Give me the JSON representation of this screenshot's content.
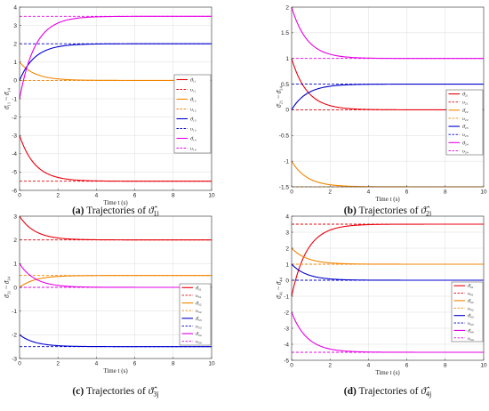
{
  "chart_data": [
    {
      "type": "line",
      "panel": "a",
      "caption_label": "(a)",
      "caption_text": "Trajectories of ",
      "caption_sym": "ϑ̂",
      "caption_sub": "1j",
      "xlabel": "Time t (s)",
      "ylabel": "ϑ̂₁₁ ~ ϑ̂₁₄",
      "xlim": [
        0,
        10
      ],
      "ylim": [
        -6,
        4
      ],
      "xticks": [
        0,
        2,
        4,
        6,
        8,
        10
      ],
      "yticks": [
        -6,
        -5,
        -4,
        -3,
        -2,
        -1,
        0,
        1,
        2,
        3,
        4
      ],
      "tau": 0.8,
      "grid": true,
      "legend_position": "center-right",
      "series": [
        {
          "name": "ϑ̂₁₁",
          "color": "#e8000b",
          "dashed": false,
          "start": -3.0,
          "final": -5.5
        },
        {
          "name": "υ₁₁",
          "color": "#e8000b",
          "dashed": true,
          "value": -5.5
        },
        {
          "name": "ϑ̂₁₂",
          "color": "#f28500",
          "dashed": false,
          "start": 1.0,
          "final": 0.0
        },
        {
          "name": "υ₁₂",
          "color": "#f28500",
          "dashed": true,
          "value": 0.0
        },
        {
          "name": "ϑ̂₁₃",
          "color": "#0000cd",
          "dashed": false,
          "start": 0.0,
          "final": 2.0
        },
        {
          "name": "υ₁₃",
          "color": "#0000cd",
          "dashed": true,
          "value": 2.0
        },
        {
          "name": "ϑ̂₁₄",
          "color": "#e600e6",
          "dashed": false,
          "start": -1.0,
          "final": 3.5
        },
        {
          "name": "υ₁₄",
          "color": "#e600e6",
          "dashed": true,
          "value": 3.5
        }
      ]
    },
    {
      "type": "line",
      "panel": "b",
      "caption_label": "(b)",
      "caption_text": "Trajectories of ",
      "caption_sym": "ϑ̂",
      "caption_sub": "2j",
      "xlabel": "Time t (s)",
      "ylabel": "ϑ̂₂₁ ~ ϑ̂₂₄",
      "xlim": [
        0,
        10
      ],
      "ylim": [
        -1.5,
        2
      ],
      "xticks": [
        0,
        2,
        4,
        6,
        8,
        10
      ],
      "yticks": [
        -1.5,
        -1,
        -0.5,
        0,
        0.5,
        1,
        1.5,
        2
      ],
      "tau": 0.8,
      "grid": true,
      "legend_position": "center-right",
      "series": [
        {
          "name": "ϑ̂₂₁",
          "color": "#e8000b",
          "dashed": false,
          "start": 1.0,
          "final": 0.0
        },
        {
          "name": "υ₂₁",
          "color": "#e8000b",
          "dashed": true,
          "value": 0.0
        },
        {
          "name": "ϑ̂₂₂",
          "color": "#f28500",
          "dashed": false,
          "start": -1.0,
          "final": -1.5
        },
        {
          "name": "υ₂₂",
          "color": "#f28500",
          "dashed": true,
          "value": -1.5
        },
        {
          "name": "ϑ̂₂₃",
          "color": "#0000cd",
          "dashed": false,
          "start": 0.0,
          "final": 0.5
        },
        {
          "name": "υ₂₃",
          "color": "#0000cd",
          "dashed": true,
          "value": 0.5
        },
        {
          "name": "ϑ̂₂₄",
          "color": "#e600e6",
          "dashed": false,
          "start": 2.0,
          "final": 1.0
        },
        {
          "name": "υ₂₄",
          "color": "#e600e6",
          "dashed": true,
          "value": 1.0
        }
      ]
    },
    {
      "type": "line",
      "panel": "c",
      "caption_label": "(c)",
      "caption_text": "Trajectories of ",
      "caption_sym": "ϑ̂",
      "caption_sub": "3j",
      "xlabel": "Time t (s)",
      "ylabel": "ϑ̂₃₁ ~ ϑ̂₃₄",
      "xlim": [
        0,
        10
      ],
      "ylim": [
        -3,
        3
      ],
      "xticks": [
        0,
        2,
        4,
        6,
        8,
        10
      ],
      "yticks": [
        -3,
        -2,
        -1,
        0,
        1,
        2,
        3
      ],
      "tau": 0.8,
      "grid": true,
      "legend_position": "center-right",
      "series": [
        {
          "name": "ϑ̂₃₁",
          "color": "#e8000b",
          "dashed": false,
          "start": 3.0,
          "final": 2.0
        },
        {
          "name": "υ₃₁",
          "color": "#e8000b",
          "dashed": true,
          "value": 2.0
        },
        {
          "name": "ϑ̂₃₂",
          "color": "#f28500",
          "dashed": false,
          "start": 0.0,
          "final": 0.5
        },
        {
          "name": "υ₃₂",
          "color": "#f28500",
          "dashed": true,
          "value": 0.5
        },
        {
          "name": "ϑ̂₃₃",
          "color": "#0000cd",
          "dashed": false,
          "start": -2.0,
          "final": -2.5
        },
        {
          "name": "υ₃₃",
          "color": "#0000cd",
          "dashed": true,
          "value": -2.5
        },
        {
          "name": "ϑ̂₃₄",
          "color": "#e600e6",
          "dashed": false,
          "start": 1.0,
          "final": 0.0
        },
        {
          "name": "υ₃₄",
          "color": "#e600e6",
          "dashed": true,
          "value": 0.0
        }
      ]
    },
    {
      "type": "line",
      "panel": "d",
      "caption_label": "(d)",
      "caption_text": "Trajectories of ",
      "caption_sym": "ϑ̂",
      "caption_sub": "4j",
      "xlabel": "Time t (s)",
      "ylabel": "ϑ̂₄₁ ~ ϑ̂₄₄",
      "xlim": [
        0,
        10
      ],
      "ylim": [
        -5,
        4
      ],
      "xticks": [
        0,
        2,
        4,
        6,
        8,
        10
      ],
      "yticks": [
        -5,
        -4,
        -3,
        -2,
        -1,
        0,
        1,
        2,
        3,
        4
      ],
      "tau": 0.8,
      "grid": true,
      "legend_position": "center-right",
      "series": [
        {
          "name": "ϑ̂₄₁",
          "color": "#e8000b",
          "dashed": false,
          "start": -1.0,
          "final": 3.5
        },
        {
          "name": "υ₄₁",
          "color": "#e8000b",
          "dashed": true,
          "value": 3.5
        },
        {
          "name": "ϑ̂₄₂",
          "color": "#f28500",
          "dashed": false,
          "start": 2.0,
          "final": 1.0
        },
        {
          "name": "υ₄₂",
          "color": "#f28500",
          "dashed": true,
          "value": 1.0
        },
        {
          "name": "ϑ̂₄₃",
          "color": "#0000cd",
          "dashed": false,
          "start": 1.0,
          "final": 0.0
        },
        {
          "name": "υ₄₃",
          "color": "#0000cd",
          "dashed": true,
          "value": 0.0
        },
        {
          "name": "ϑ̂₄₄",
          "color": "#e600e6",
          "dashed": false,
          "start": -2.0,
          "final": -4.5
        },
        {
          "name": "υ₄₄",
          "color": "#e600e6",
          "dashed": true,
          "value": -4.5
        }
      ]
    }
  ]
}
